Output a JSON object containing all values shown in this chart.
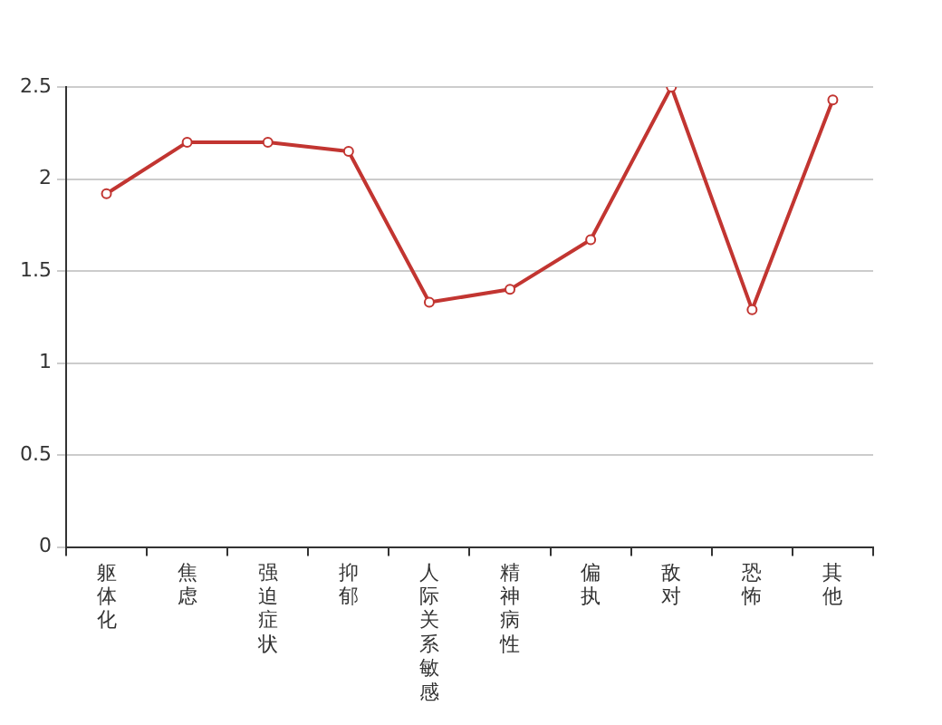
{
  "chart_data": {
    "type": "line",
    "categories": [
      "躯体化",
      "焦虑",
      "强迫症状",
      "抑郁",
      "人际关系敏感",
      "精神病性",
      "偏执",
      "敌对",
      "恐怖",
      "其他"
    ],
    "series": [
      {
        "color": "#c23531",
        "values": [
          1.92,
          2.2,
          2.2,
          2.15,
          1.33,
          1.4,
          1.67,
          2.5,
          1.29,
          2.43
        ]
      }
    ],
    "ylim": [
      0,
      2.5
    ],
    "yticks": [
      0,
      0.5,
      1,
      1.5,
      2,
      2.5
    ],
    "grid": "y",
    "legend": false,
    "marker": "circle",
    "line_style": "solid"
  }
}
